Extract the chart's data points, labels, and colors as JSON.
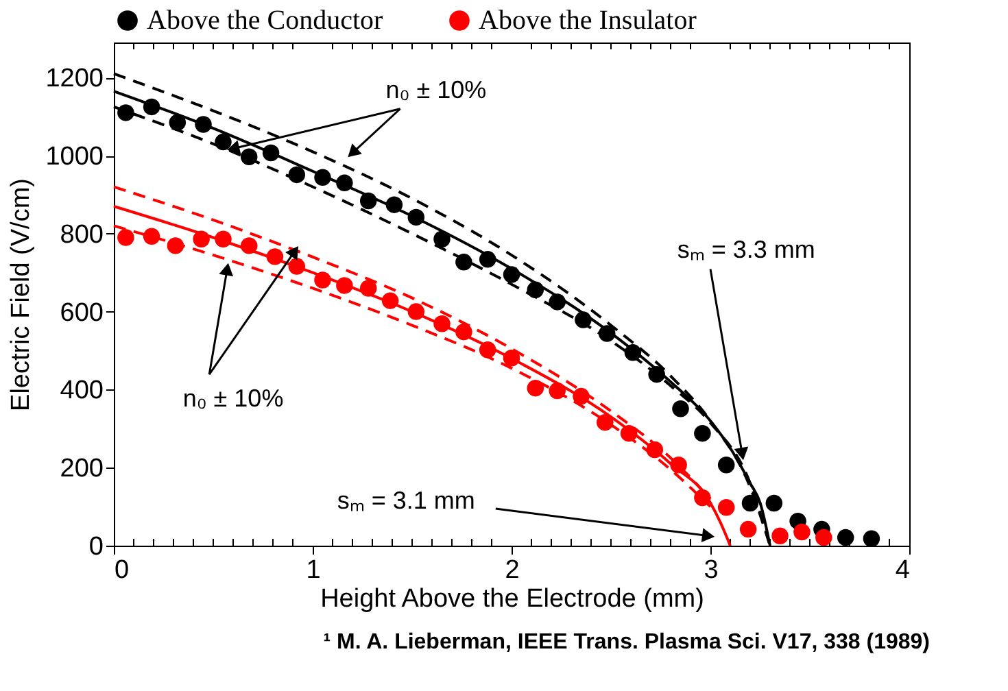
{
  "chart_data": {
    "type": "scatter",
    "xlabel": "Height Above the Electrode (mm)",
    "ylabel": "Electric Field (V/cm)",
    "xlim": [
      0,
      4
    ],
    "ylim": [
      0,
      1290
    ],
    "xticks": [
      0,
      {
        "value": 0.1,
        "label": null
      },
      {
        "value": 0.2,
        "label": null
      },
      {
        "value": 0.3,
        "label": null
      },
      {
        "value": 0.4,
        "label": null
      },
      {
        "value": 0.5,
        "label": null
      },
      {
        "value": 0.6,
        "label": null
      },
      {
        "value": 0.7,
        "label": null
      },
      {
        "value": 0.8,
        "label": null
      },
      {
        "value": 0.9,
        "label": null
      },
      1,
      {
        "value": 1.1,
        "label": null
      },
      {
        "value": 1.2,
        "label": null
      },
      {
        "value": 1.3,
        "label": null
      },
      {
        "value": 1.4,
        "label": null
      },
      {
        "value": 1.5,
        "label": null
      },
      {
        "value": 1.6,
        "label": null
      },
      {
        "value": 1.7,
        "label": null
      },
      {
        "value": 1.8,
        "label": null
      },
      {
        "value": 1.9,
        "label": null
      },
      2,
      {
        "value": 2.1,
        "label": null
      },
      {
        "value": 2.2,
        "label": null
      },
      {
        "value": 2.3,
        "label": null
      },
      {
        "value": 2.4,
        "label": null
      },
      {
        "value": 2.5,
        "label": null
      },
      {
        "value": 2.6,
        "label": null
      },
      {
        "value": 2.7,
        "label": null
      },
      {
        "value": 2.8,
        "label": null
      },
      {
        "value": 2.9,
        "label": null
      },
      3,
      {
        "value": 3.1,
        "label": null
      },
      {
        "value": 3.2,
        "label": null
      },
      {
        "value": 3.3,
        "label": null
      },
      {
        "value": 3.4,
        "label": null
      },
      {
        "value": 3.5,
        "label": null
      },
      {
        "value": 3.6,
        "label": null
      },
      {
        "value": 3.7,
        "label": null
      },
      {
        "value": 3.8,
        "label": null
      },
      {
        "value": 3.9,
        "label": null
      },
      4
    ],
    "yticks": [
      0,
      200,
      400,
      600,
      800,
      1000,
      1200
    ],
    "grid": false,
    "legend": "top",
    "series": [
      {
        "name": "Above the Conductor",
        "marker": "circle",
        "color": "#000000",
        "x": [
          0.06,
          0.19,
          0.32,
          0.45,
          0.55,
          0.68,
          0.79,
          0.92,
          1.05,
          1.16,
          1.28,
          1.41,
          1.52,
          1.65,
          1.76,
          1.88,
          2.0,
          2.12,
          2.23,
          2.36,
          2.48,
          2.61,
          2.73,
          2.85,
          2.96,
          3.08,
          3.2,
          3.32,
          3.44,
          3.56,
          3.68,
          3.81
        ],
        "values": [
          1110,
          1125,
          1085,
          1080,
          1035,
          997,
          1007,
          951,
          944,
          930,
          884,
          874,
          842,
          786,
          727,
          734,
          695,
          656,
          625,
          579,
          544,
          495,
          439,
          351,
          288,
          207,
          109,
          109,
          63,
          42,
          21,
          18
        ]
      },
      {
        "name": "Above the Insulator",
        "marker": "circle",
        "color": "#ff0000",
        "x": [
          0.06,
          0.19,
          0.31,
          0.44,
          0.55,
          0.68,
          0.81,
          0.92,
          1.05,
          1.16,
          1.28,
          1.39,
          1.52,
          1.65,
          1.76,
          1.88,
          2.0,
          2.12,
          2.23,
          2.35,
          2.47,
          2.59,
          2.72,
          2.84,
          2.96,
          3.08,
          3.19,
          3.35,
          3.46,
          3.57
        ],
        "values": [
          790,
          793,
          769,
          786,
          786,
          769,
          741,
          716,
          681,
          667,
          660,
          628,
          600,
          569,
          548,
          502,
          481,
          404,
          397,
          383,
          316,
          288,
          246,
          207,
          123,
          98,
          42,
          25,
          35,
          21
        ]
      },
      {
        "type": "line",
        "color": "#000000",
        "line_style": "solid",
        "x": [
          0,
          0.5,
          1,
          1.5,
          2,
          2.5,
          2.8,
          3,
          3.1,
          3.2,
          3.25,
          3.3
        ],
        "values": [
          1165,
          1070,
          960,
          845,
          710,
          545,
          420,
          320,
          250,
          160,
          110,
          0
        ]
      },
      {
        "type": "line",
        "color": "#000000",
        "line_style": "dashed",
        "x": [
          0,
          0.5,
          1,
          1.5,
          2,
          2.5,
          2.8,
          3,
          3.2,
          3.3
        ],
        "values": [
          1210,
          1115,
          1010,
          890,
          745,
          565,
          435,
          320,
          150,
          0
        ]
      },
      {
        "type": "line",
        "color": "#000000",
        "line_style": "dashed",
        "x": [
          0,
          0.5,
          1,
          1.5,
          2,
          2.5,
          2.8,
          3,
          3.2,
          3.3
        ],
        "values": [
          1125,
          1030,
          920,
          800,
          670,
          525,
          410,
          315,
          160,
          0
        ]
      },
      {
        "type": "line",
        "color": "#ff0000",
        "line_style": "solid",
        "x": [
          0,
          0.5,
          1,
          1.5,
          2,
          2.5,
          2.8,
          3,
          3.05,
          3.1
        ],
        "values": [
          870,
          790,
          700,
          600,
          480,
          330,
          210,
          110,
          60,
          0
        ]
      },
      {
        "type": "line",
        "color": "#ff0000",
        "line_style": "dashed",
        "x": [
          0,
          0.5,
          1,
          1.5,
          2,
          2.5,
          2.8,
          3
        ],
        "values": [
          920,
          835,
          740,
          635,
          505,
          345,
          225,
          120
        ]
      },
      {
        "type": "line",
        "color": "#ff0000",
        "line_style": "dashed",
        "x": [
          0,
          0.5,
          1,
          1.5,
          2,
          2.5,
          2.8,
          3
        ],
        "values": [
          820,
          745,
          660,
          565,
          455,
          310,
          195,
          100
        ]
      }
    ],
    "annotations": [
      {
        "text": "n₀ ± 10%",
        "x": 0.6,
        "y": 1018
      },
      {
        "text": "n₀ ± 10%",
        "x": 0.57,
        "y": 709
      },
      {
        "text": "sₘ = 3.3 mm",
        "x": 3.16,
        "y": 235
      },
      {
        "text": "sₘ = 3.1 mm",
        "x": 2.99,
        "y": 25
      },
      "¹ M. A. Lieberman, IEEE Trans. Plasma Sci. V17, 338 (1989)"
    ]
  }
}
